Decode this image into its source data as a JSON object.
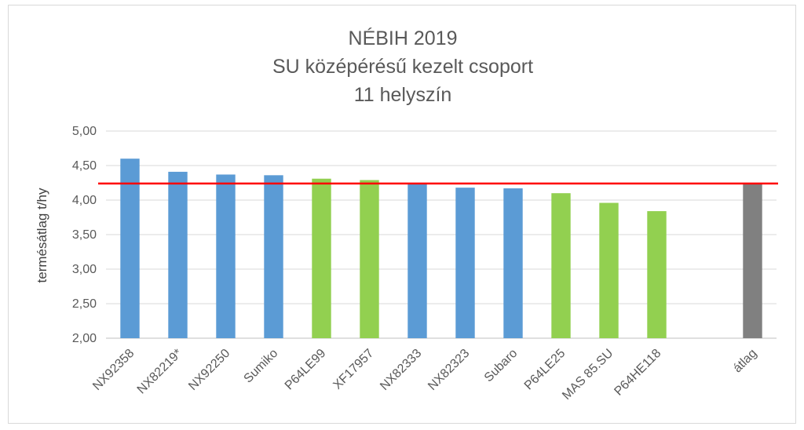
{
  "chart_data": {
    "type": "bar",
    "title_lines": [
      "NÉBIH 2019",
      "SU középérésű kezelt csoport",
      "11 helyszín"
    ],
    "xlabel": "",
    "ylabel": "termésátlag t/hy",
    "ylim": [
      2.0,
      5.0
    ],
    "yticks": [
      "2,00",
      "2,50",
      "3,00",
      "3,50",
      "4,00",
      "4,50",
      "5,00"
    ],
    "ytick_values": [
      2.0,
      2.5,
      3.0,
      3.5,
      4.0,
      4.5,
      5.0
    ],
    "categories": [
      "NX92358",
      "NX82219*",
      "NX92250",
      "Sumiko",
      "P64LE99",
      "XF17957",
      "NX82333",
      "NX82323",
      "Subaro",
      "P64LE25",
      "MAS 85.SU",
      "P64HE118",
      "",
      "átlag"
    ],
    "values": [
      4.6,
      4.41,
      4.37,
      4.36,
      4.31,
      4.29,
      4.23,
      4.18,
      4.17,
      4.1,
      3.96,
      3.84,
      null,
      4.24
    ],
    "bar_colors": [
      "#5b9bd5",
      "#5b9bd5",
      "#5b9bd5",
      "#5b9bd5",
      "#92d050",
      "#92d050",
      "#5b9bd5",
      "#5b9bd5",
      "#5b9bd5",
      "#92d050",
      "#92d050",
      "#92d050",
      null,
      "#808080"
    ],
    "reference_line": {
      "value": 4.24,
      "color": "#ff0000"
    },
    "grid": true,
    "legend": "none"
  }
}
